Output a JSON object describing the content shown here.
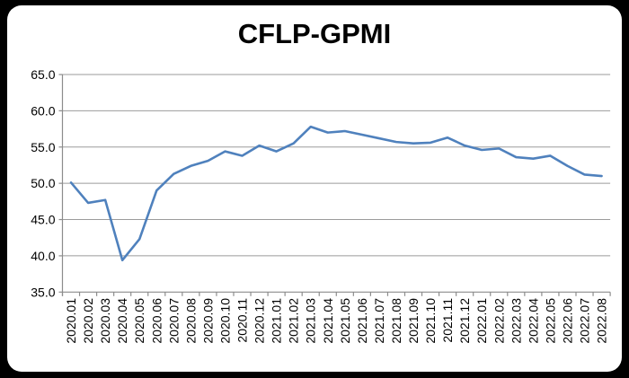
{
  "chart_data": {
    "type": "line",
    "title": "CFLP-GPMI",
    "categories": [
      "2020.01",
      "2020.02",
      "2020.03",
      "2020.04",
      "2020.05",
      "2020.06",
      "2020.07",
      "2020.08",
      "2020.09",
      "2020.10",
      "2020.11",
      "2020.12",
      "2021.01",
      "2021.02",
      "2021.03",
      "2021.04",
      "2021.05",
      "2021.06",
      "2021.07",
      "2021.08",
      "2021.09",
      "2021.10",
      "2021.11",
      "2021.12",
      "2022.01",
      "2022.02",
      "2022.03",
      "2022.04",
      "2022.05",
      "2022.06",
      "2022.07",
      "2022.08"
    ],
    "series": [
      {
        "name": "CFLP-GPMI",
        "values": [
          50.1,
          47.3,
          47.7,
          39.4,
          42.3,
          49.0,
          51.3,
          52.4,
          53.1,
          54.4,
          53.8,
          55.2,
          54.4,
          55.5,
          57.8,
          57.0,
          57.2,
          56.7,
          56.2,
          55.7,
          55.5,
          55.6,
          56.3,
          55.2,
          54.6,
          54.8,
          53.6,
          53.4,
          53.8,
          52.4,
          51.2,
          51.0
        ]
      }
    ],
    "xlabel": "",
    "ylabel": "",
    "ylim": [
      35.0,
      65.0
    ],
    "y_tick_step": 5,
    "y_tick_labels": [
      "65.0",
      "60.0",
      "55.0",
      "50.0",
      "45.0",
      "40.0",
      "35.0"
    ],
    "grid": "horizontal",
    "legend_position": "none",
    "colors": {
      "line": "#4F81BD",
      "grid": "#9B9B9B",
      "axis": "#8C8C8C",
      "tick_text": "#000000",
      "title_text": "#000000",
      "plot_background": "#FFFFFF",
      "frame_background": "#000000"
    }
  }
}
